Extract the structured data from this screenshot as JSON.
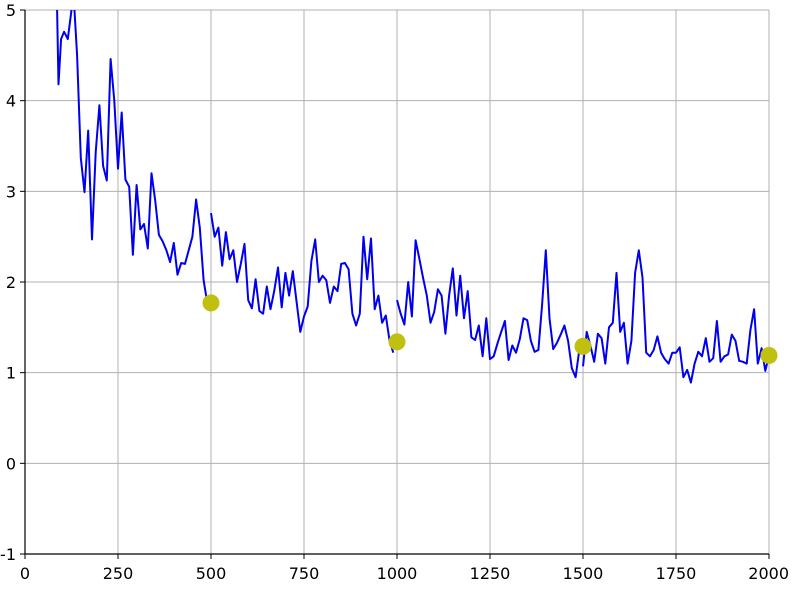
{
  "chart_data": {
    "type": "line",
    "title": "",
    "xlabel": "",
    "ylabel": "",
    "xlim": [
      0,
      2000
    ],
    "ylim": [
      -1,
      5
    ],
    "grid": true,
    "x_ticks": [
      0,
      250,
      500,
      750,
      1000,
      1250,
      1500,
      1750,
      2000
    ],
    "x_tick_labels": [
      "0",
      "250",
      "500",
      "750",
      "1000",
      "1250",
      "1500",
      "1750",
      "2000"
    ],
    "y_ticks": [
      -1,
      0,
      1,
      2,
      3,
      4,
      5
    ],
    "y_tick_labels": [
      "-1",
      "0",
      "1",
      "2",
      "3",
      "4",
      "5"
    ],
    "colors": {
      "line": "#0000ee",
      "markers": "#c0c010",
      "grid": "#b0b0b0",
      "axis": "#000000"
    },
    "series": [
      {
        "style": "line",
        "segments": [
          {
            "x": [
              70,
              80,
              85,
              90,
              97,
              105,
              115,
              125,
              130,
              140,
              150,
              160,
              170,
              180,
              190,
              200,
              210,
              220,
              230,
              240,
              250,
              260,
              270,
              280,
              290,
              300,
              310,
              320,
              330,
              340,
              350,
              360,
              370,
              380,
              390,
              400,
              410,
              420,
              430,
              440,
              450,
              460,
              470,
              480,
              490
            ],
            "y": [
              5.0,
              5.5,
              5.3,
              4.18,
              4.68,
              4.76,
              4.68,
              5.0,
              5.2,
              4.5,
              3.37,
              2.99,
              3.67,
              2.47,
              3.43,
              3.95,
              3.28,
              3.12,
              4.46,
              4.0,
              3.25,
              3.87,
              3.13,
              3.05,
              2.3,
              3.07,
              2.58,
              2.64,
              2.37,
              3.2,
              2.9,
              2.52,
              2.45,
              2.35,
              2.22,
              2.43,
              2.08,
              2.21,
              2.2,
              2.35,
              2.5,
              2.91,
              2.6,
              2.02,
              1.77
            ]
          },
          {
            "x": [
              500,
              510,
              520,
              530,
              540,
              550,
              560,
              570,
              580,
              590,
              600,
              610,
              620,
              630,
              640,
              650,
              660,
              670,
              680,
              690,
              700,
              710,
              720,
              730,
              740,
              750,
              760,
              770,
              780,
              790,
              800,
              810,
              820,
              830,
              840,
              850,
              860,
              870,
              880,
              890,
              900,
              910,
              920,
              930,
              940,
              950,
              960,
              970,
              980,
              990
            ],
            "y": [
              2.76,
              2.5,
              2.6,
              2.18,
              2.55,
              2.25,
              2.35,
              2.0,
              2.2,
              2.42,
              1.8,
              1.71,
              2.03,
              1.68,
              1.65,
              1.95,
              1.7,
              1.9,
              2.16,
              1.72,
              2.1,
              1.85,
              2.12,
              1.78,
              1.45,
              1.62,
              1.73,
              2.23,
              2.47,
              2.0,
              2.07,
              2.02,
              1.77,
              1.95,
              1.9,
              2.2,
              2.21,
              2.14,
              1.65,
              1.52,
              1.65,
              2.5,
              2.03,
              2.48,
              1.7,
              1.85,
              1.55,
              1.63,
              1.35,
              1.22
            ]
          },
          {
            "x": [
              1000,
              1010,
              1020,
              1030,
              1040,
              1050,
              1060,
              1070,
              1080,
              1090,
              1100,
              1110,
              1120,
              1130,
              1140,
              1150,
              1160,
              1170,
              1180,
              1190,
              1200,
              1210,
              1220,
              1230,
              1240,
              1250,
              1260,
              1270,
              1280,
              1290,
              1300,
              1310,
              1320,
              1330,
              1340,
              1350,
              1360,
              1370,
              1380,
              1390,
              1400,
              1410,
              1420,
              1430,
              1440,
              1450,
              1460,
              1470,
              1480,
              1490
            ],
            "y": [
              1.8,
              1.65,
              1.53,
              2.0,
              1.62,
              2.46,
              2.26,
              2.05,
              1.85,
              1.55,
              1.67,
              1.92,
              1.85,
              1.43,
              1.85,
              2.15,
              1.63,
              2.07,
              1.6,
              1.9,
              1.39,
              1.36,
              1.52,
              1.18,
              1.6,
              1.15,
              1.18,
              1.32,
              1.45,
              1.57,
              1.14,
              1.3,
              1.22,
              1.37,
              1.6,
              1.58,
              1.35,
              1.23,
              1.25,
              1.75,
              2.35,
              1.6,
              1.26,
              1.33,
              1.42,
              1.52,
              1.35,
              1.05,
              0.95,
              1.25
            ]
          },
          {
            "x": [
              1500,
              1510,
              1520,
              1530,
              1540,
              1550,
              1560,
              1570,
              1580,
              1590,
              1600,
              1610,
              1620,
              1630,
              1640,
              1650,
              1660,
              1670,
              1680,
              1690,
              1700,
              1710,
              1720,
              1730,
              1740,
              1750,
              1760,
              1770,
              1780,
              1790,
              1800,
              1810,
              1820,
              1830,
              1840,
              1850,
              1860,
              1870,
              1880,
              1890,
              1900,
              1910,
              1920,
              1930,
              1940,
              1950,
              1960,
              1970,
              1980,
              1990,
              2000
            ],
            "y": [
              1.07,
              1.45,
              1.3,
              1.12,
              1.43,
              1.38,
              1.1,
              1.5,
              1.55,
              2.1,
              1.45,
              1.55,
              1.1,
              1.35,
              2.1,
              2.35,
              2.05,
              1.22,
              1.18,
              1.25,
              1.4,
              1.22,
              1.15,
              1.1,
              1.22,
              1.22,
              1.28,
              0.95,
              1.03,
              0.89,
              1.1,
              1.23,
              1.18,
              1.38,
              1.12,
              1.16,
              1.57,
              1.12,
              1.18,
              1.2,
              1.42,
              1.35,
              1.13,
              1.12,
              1.1,
              1.47,
              1.7,
              1.1,
              1.27,
              1.02,
              1.19
            ]
          }
        ]
      },
      {
        "style": "markers",
        "x": [
          500,
          1000,
          1500,
          2000
        ],
        "y": [
          1.77,
          1.34,
          1.29,
          1.19
        ]
      }
    ]
  }
}
